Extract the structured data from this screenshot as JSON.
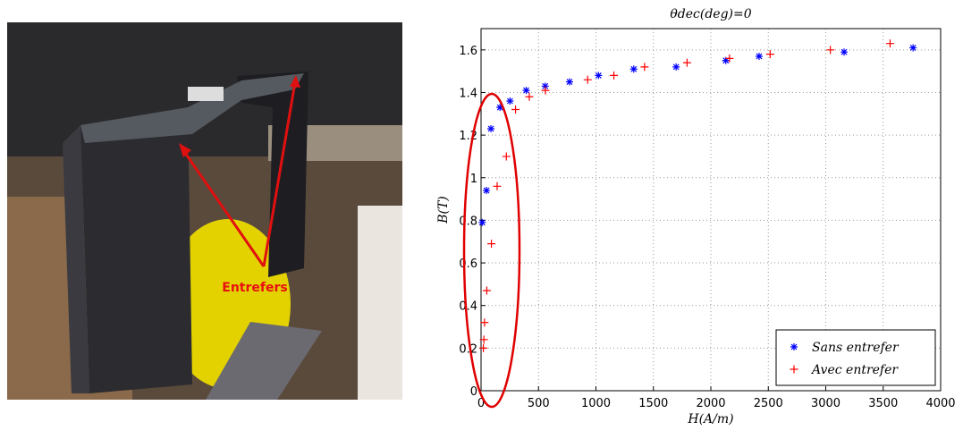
{
  "photo": {
    "label": "Entrefers"
  },
  "chart_data": {
    "type": "scatter",
    "title": "θdec(deg)=0",
    "xlabel": "H(A/m)",
    "ylabel": "B(T)",
    "xlim": [
      0,
      4000
    ],
    "xticks": [
      0,
      500,
      1000,
      1500,
      2000,
      2500,
      3000,
      3500,
      4000
    ],
    "ylim": [
      0,
      1.7
    ],
    "yticks": [
      0,
      0.2,
      0.4,
      0.6,
      0.8,
      1,
      1.2,
      1.4,
      1.6
    ],
    "grid": true,
    "legend": "lower right",
    "series": [
      {
        "name": "Sans entrefer",
        "color": "#0000ff",
        "marker": "star",
        "x": [
          10,
          47,
          86,
          165,
          252,
          393,
          558,
          770,
          1022,
          1329,
          1698,
          2130,
          2420,
          3160,
          3760
        ],
        "values": [
          0.79,
          0.94,
          1.23,
          1.33,
          1.36,
          1.41,
          1.43,
          1.45,
          1.48,
          1.51,
          1.52,
          1.55,
          1.57,
          1.59,
          1.61
        ]
      },
      {
        "name": "Avec entrefer",
        "color": "#ff0000",
        "marker": "plus",
        "x": [
          20,
          25,
          30,
          50,
          90,
          140,
          220,
          300,
          420,
          560,
          928,
          1156,
          1423,
          1793,
          2162,
          2516,
          3040,
          3560
        ],
        "values": [
          0.2,
          0.24,
          0.32,
          0.47,
          0.69,
          0.96,
          1.1,
          1.32,
          1.38,
          1.41,
          1.46,
          1.48,
          1.52,
          1.54,
          1.56,
          1.58,
          1.6,
          1.63
        ]
      }
    ]
  }
}
